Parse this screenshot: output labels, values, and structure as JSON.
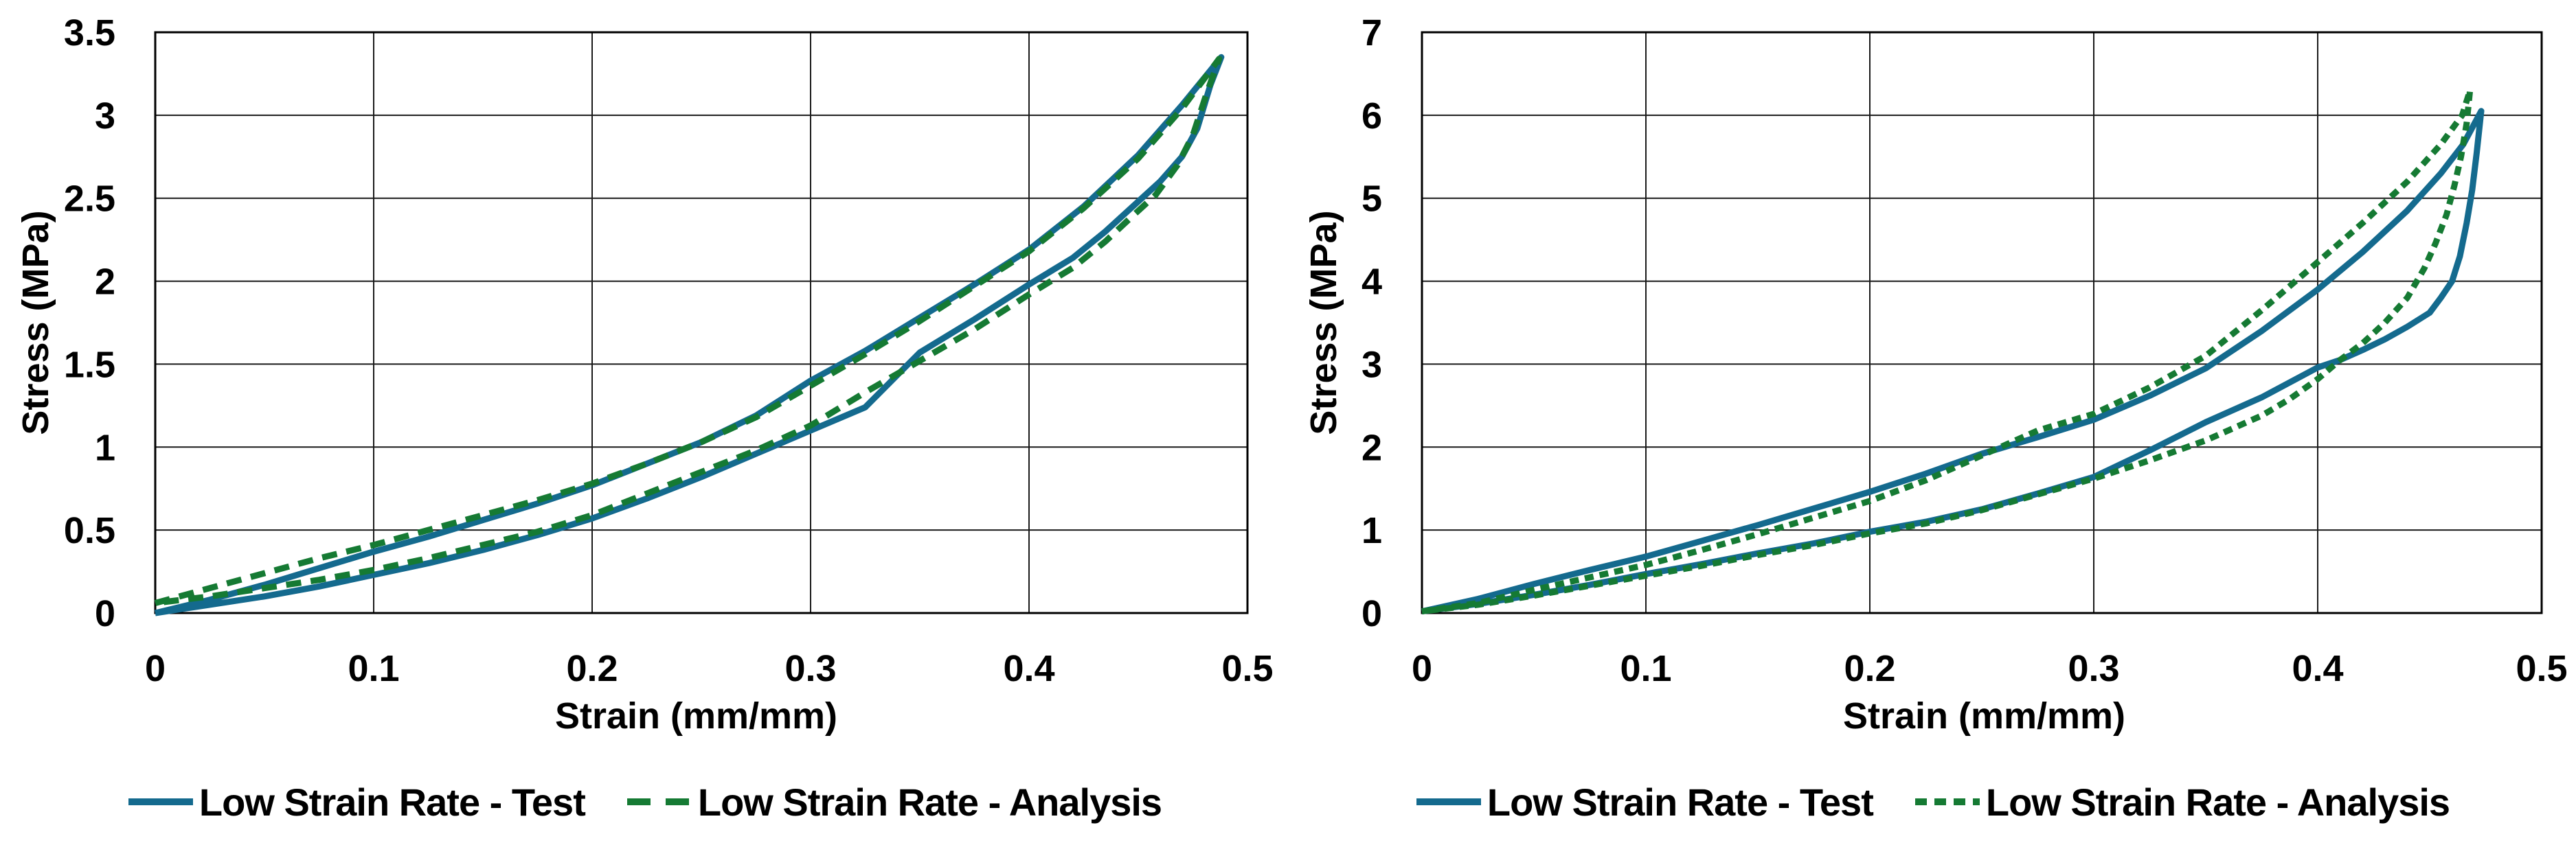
{
  "page": {
    "background": "#ffffff",
    "grid_color": "#1a1a1a",
    "axis_color": "#000000"
  },
  "chart_data": [
    {
      "type": "line",
      "title": "",
      "xlabel": "Strain (mm/mm)",
      "ylabel": "Stress (MPa)",
      "xlim": [
        0,
        0.5
      ],
      "ylim": [
        0,
        3.5
      ],
      "xticks": [
        0,
        0.1,
        0.2,
        0.3,
        0.4,
        0.5
      ],
      "yticks": [
        0,
        0.5,
        1,
        1.5,
        2,
        2.5,
        3,
        3.5
      ],
      "grid": true,
      "legend_position": "bottom",
      "series": [
        {
          "name": "Low Strain Rate - Test",
          "color": "#146A8E",
          "line_style": "solid",
          "dash": null,
          "legend_dash": null,
          "x": [
            0,
            0.025,
            0.05,
            0.075,
            0.1,
            0.125,
            0.15,
            0.175,
            0.2,
            0.225,
            0.25,
            0.275,
            0.3,
            0.325,
            0.35,
            0.375,
            0.4,
            0.425,
            0.45,
            0.47,
            0.488,
            0.483,
            0.477,
            0.47,
            0.46,
            0.45,
            0.435,
            0.42,
            0.4,
            0.375,
            0.35,
            0.325,
            0.3,
            0.275,
            0.25,
            0.225,
            0.2,
            0.175,
            0.15,
            0.125,
            0.1,
            0.075,
            0.05,
            0.025,
            0
          ],
          "y": [
            0,
            0.08,
            0.17,
            0.27,
            0.37,
            0.46,
            0.56,
            0.66,
            0.77,
            0.9,
            1.03,
            1.19,
            1.4,
            1.58,
            1.78,
            1.98,
            2.19,
            2.45,
            2.76,
            3.06,
            3.35,
            3.18,
            2.92,
            2.75,
            2.6,
            2.48,
            2.3,
            2.14,
            1.98,
            1.77,
            1.57,
            1.24,
            1.1,
            0.96,
            0.82,
            0.69,
            0.57,
            0.47,
            0.38,
            0.3,
            0.23,
            0.16,
            0.1,
            0.05,
            0
          ]
        },
        {
          "name": "Low Strain Rate - Analysis",
          "color": "#157A33",
          "line_style": "dashed",
          "dash": [
            22,
            14
          ],
          "legend_dash": [
            34,
            22
          ],
          "x": [
            0,
            0.025,
            0.05,
            0.075,
            0.1,
            0.125,
            0.15,
            0.175,
            0.2,
            0.225,
            0.25,
            0.275,
            0.3,
            0.325,
            0.35,
            0.375,
            0.4,
            0.425,
            0.45,
            0.47,
            0.487,
            0.481,
            0.475,
            0.468,
            0.458,
            0.448,
            0.435,
            0.42,
            0.4,
            0.375,
            0.35,
            0.325,
            0.3,
            0.275,
            0.25,
            0.225,
            0.2,
            0.175,
            0.15,
            0.125,
            0.1,
            0.075,
            0.05,
            0.025,
            0
          ],
          "y": [
            0.06,
            0.15,
            0.24,
            0.33,
            0.41,
            0.5,
            0.59,
            0.68,
            0.78,
            0.9,
            1.03,
            1.18,
            1.37,
            1.56,
            1.76,
            1.97,
            2.18,
            2.44,
            2.74,
            3.04,
            3.34,
            3.12,
            2.88,
            2.7,
            2.52,
            2.4,
            2.24,
            2.08,
            1.92,
            1.71,
            1.52,
            1.33,
            1.13,
            0.98,
            0.85,
            0.72,
            0.59,
            0.49,
            0.41,
            0.33,
            0.26,
            0.2,
            0.15,
            0.1,
            0.06
          ]
        }
      ]
    },
    {
      "type": "line",
      "title": "",
      "xlabel": "Strain (mm/mm)",
      "ylabel": "Stress (MPa)",
      "xlim": [
        0,
        0.5
      ],
      "ylim": [
        0,
        7
      ],
      "xticks": [
        0,
        0.1,
        0.2,
        0.3,
        0.4,
        0.5
      ],
      "yticks": [
        0,
        1,
        2,
        3,
        4,
        5,
        6,
        7
      ],
      "grid": true,
      "legend_position": "bottom",
      "series": [
        {
          "name": "Low Strain Rate - Test",
          "color": "#146A8E",
          "line_style": "solid",
          "dash": null,
          "legend_dash": null,
          "x": [
            0,
            0.025,
            0.05,
            0.075,
            0.1,
            0.125,
            0.15,
            0.175,
            0.2,
            0.225,
            0.25,
            0.275,
            0.3,
            0.325,
            0.35,
            0.375,
            0.4,
            0.42,
            0.44,
            0.455,
            0.465,
            0.473,
            0.471,
            0.469,
            0.4665,
            0.4635,
            0.46,
            0.455,
            0.45,
            0.44,
            0.43,
            0.42,
            0.41,
            0.4,
            0.375,
            0.35,
            0.325,
            0.3,
            0.275,
            0.25,
            0.225,
            0.2,
            0.175,
            0.15,
            0.125,
            0.1,
            0.075,
            0.05,
            0.025,
            0
          ],
          "y": [
            0.02,
            0.17,
            0.35,
            0.52,
            0.68,
            0.87,
            1.06,
            1.26,
            1.46,
            1.68,
            1.92,
            2.12,
            2.33,
            2.62,
            2.95,
            3.4,
            3.9,
            4.35,
            4.85,
            5.3,
            5.65,
            6.05,
            5.55,
            5.1,
            4.7,
            4.3,
            4.0,
            3.8,
            3.62,
            3.45,
            3.3,
            3.17,
            3.05,
            2.96,
            2.6,
            2.3,
            1.96,
            1.64,
            1.44,
            1.25,
            1.1,
            0.98,
            0.84,
            0.72,
            0.59,
            0.47,
            0.34,
            0.22,
            0.11,
            0.02
          ]
        },
        {
          "name": "Low Strain Rate - Analysis",
          "color": "#157A33",
          "line_style": "dashed",
          "dash": [
            13,
            9
          ],
          "legend_dash": [
            17,
            11
          ],
          "x": [
            0,
            0.025,
            0.05,
            0.075,
            0.1,
            0.125,
            0.15,
            0.175,
            0.2,
            0.225,
            0.25,
            0.275,
            0.3,
            0.325,
            0.35,
            0.375,
            0.4,
            0.42,
            0.44,
            0.455,
            0.4645,
            0.468,
            0.4665,
            0.464,
            0.461,
            0.4575,
            0.4525,
            0.4475,
            0.44,
            0.43,
            0.42,
            0.41,
            0.4,
            0.3875,
            0.375,
            0.35,
            0.325,
            0.3,
            0.275,
            0.25,
            0.225,
            0.2,
            0.175,
            0.15,
            0.125,
            0.1,
            0.075,
            0.05,
            0.025,
            0
          ],
          "y": [
            0.02,
            0.12,
            0.28,
            0.43,
            0.58,
            0.76,
            0.95,
            1.15,
            1.35,
            1.6,
            1.9,
            2.2,
            2.4,
            2.72,
            3.1,
            3.65,
            4.23,
            4.7,
            5.2,
            5.65,
            6.0,
            6.3,
            5.9,
            5.5,
            5.15,
            4.8,
            4.45,
            4.15,
            3.8,
            3.5,
            3.25,
            3.05,
            2.82,
            2.58,
            2.38,
            2.08,
            1.84,
            1.62,
            1.43,
            1.24,
            1.08,
            0.96,
            0.82,
            0.7,
            0.57,
            0.45,
            0.33,
            0.21,
            0.1,
            0.02
          ]
        }
      ]
    }
  ]
}
